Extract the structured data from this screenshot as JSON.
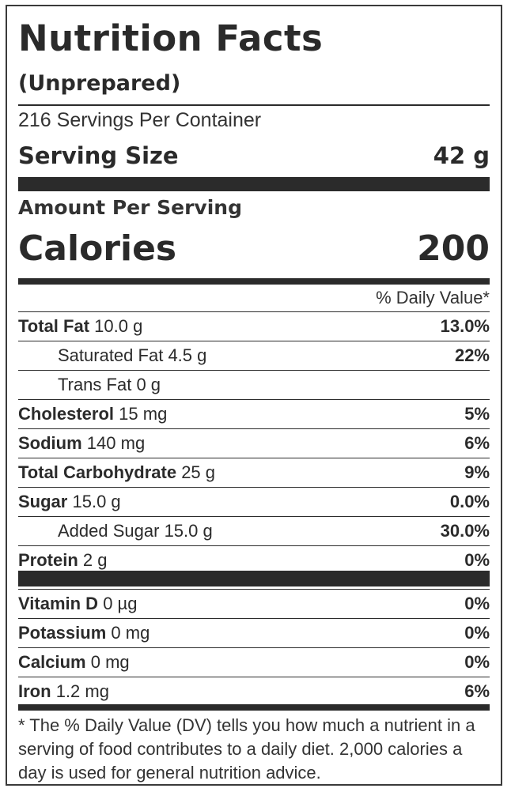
{
  "header": {
    "title": "Nutrition Facts",
    "subtitle": "(Unprepared)",
    "servings_per_container": "216 Servings Per Container",
    "serving_size_label": "Serving Size",
    "serving_size_value": "42 g"
  },
  "calories": {
    "amount_label": "Amount Per Serving",
    "label": "Calories",
    "value": "200"
  },
  "daily_value_header": "% Daily Value*",
  "nutrients": [
    {
      "name": "Total Fat",
      "amount": "10.0 g",
      "dv": "13.0%",
      "bold": true,
      "indent": false
    },
    {
      "name": "Saturated Fat",
      "amount": "4.5 g",
      "dv": "22%",
      "bold": false,
      "indent": true
    },
    {
      "name": "Trans Fat",
      "amount": "0 g",
      "dv": "",
      "bold": false,
      "indent": true
    },
    {
      "name": "Cholesterol",
      "amount": "15 mg",
      "dv": "5%",
      "bold": true,
      "indent": false
    },
    {
      "name": "Sodium",
      "amount": "140 mg",
      "dv": "6%",
      "bold": true,
      "indent": false
    },
    {
      "name": "Total Carbohydrate",
      "amount": "25 g",
      "dv": "9%",
      "bold": true,
      "indent": false
    },
    {
      "name": "Sugar",
      "amount": "15.0 g",
      "dv": "0.0%",
      "bold": true,
      "indent": false
    },
    {
      "name": "Added Sugar",
      "amount": "15.0 g",
      "dv": "30.0%",
      "bold": false,
      "indent": true
    },
    {
      "name": "Protein",
      "amount": "2 g",
      "dv": "0%",
      "bold": true,
      "indent": false
    }
  ],
  "vitamins": [
    {
      "name": "Vitamin D",
      "amount": "0 µg",
      "dv": "0%"
    },
    {
      "name": "Potassium",
      "amount": "0 mg",
      "dv": "0%"
    },
    {
      "name": "Calcium",
      "amount": "0 mg",
      "dv": "0%"
    },
    {
      "name": "Iron",
      "amount": "1.2 mg",
      "dv": "6%"
    }
  ],
  "footnote": "* The % Daily Value (DV) tells you how much a nutrient in a serving of food contributes to a daily diet. 2,000 calories a day is used for general nutrition advice."
}
